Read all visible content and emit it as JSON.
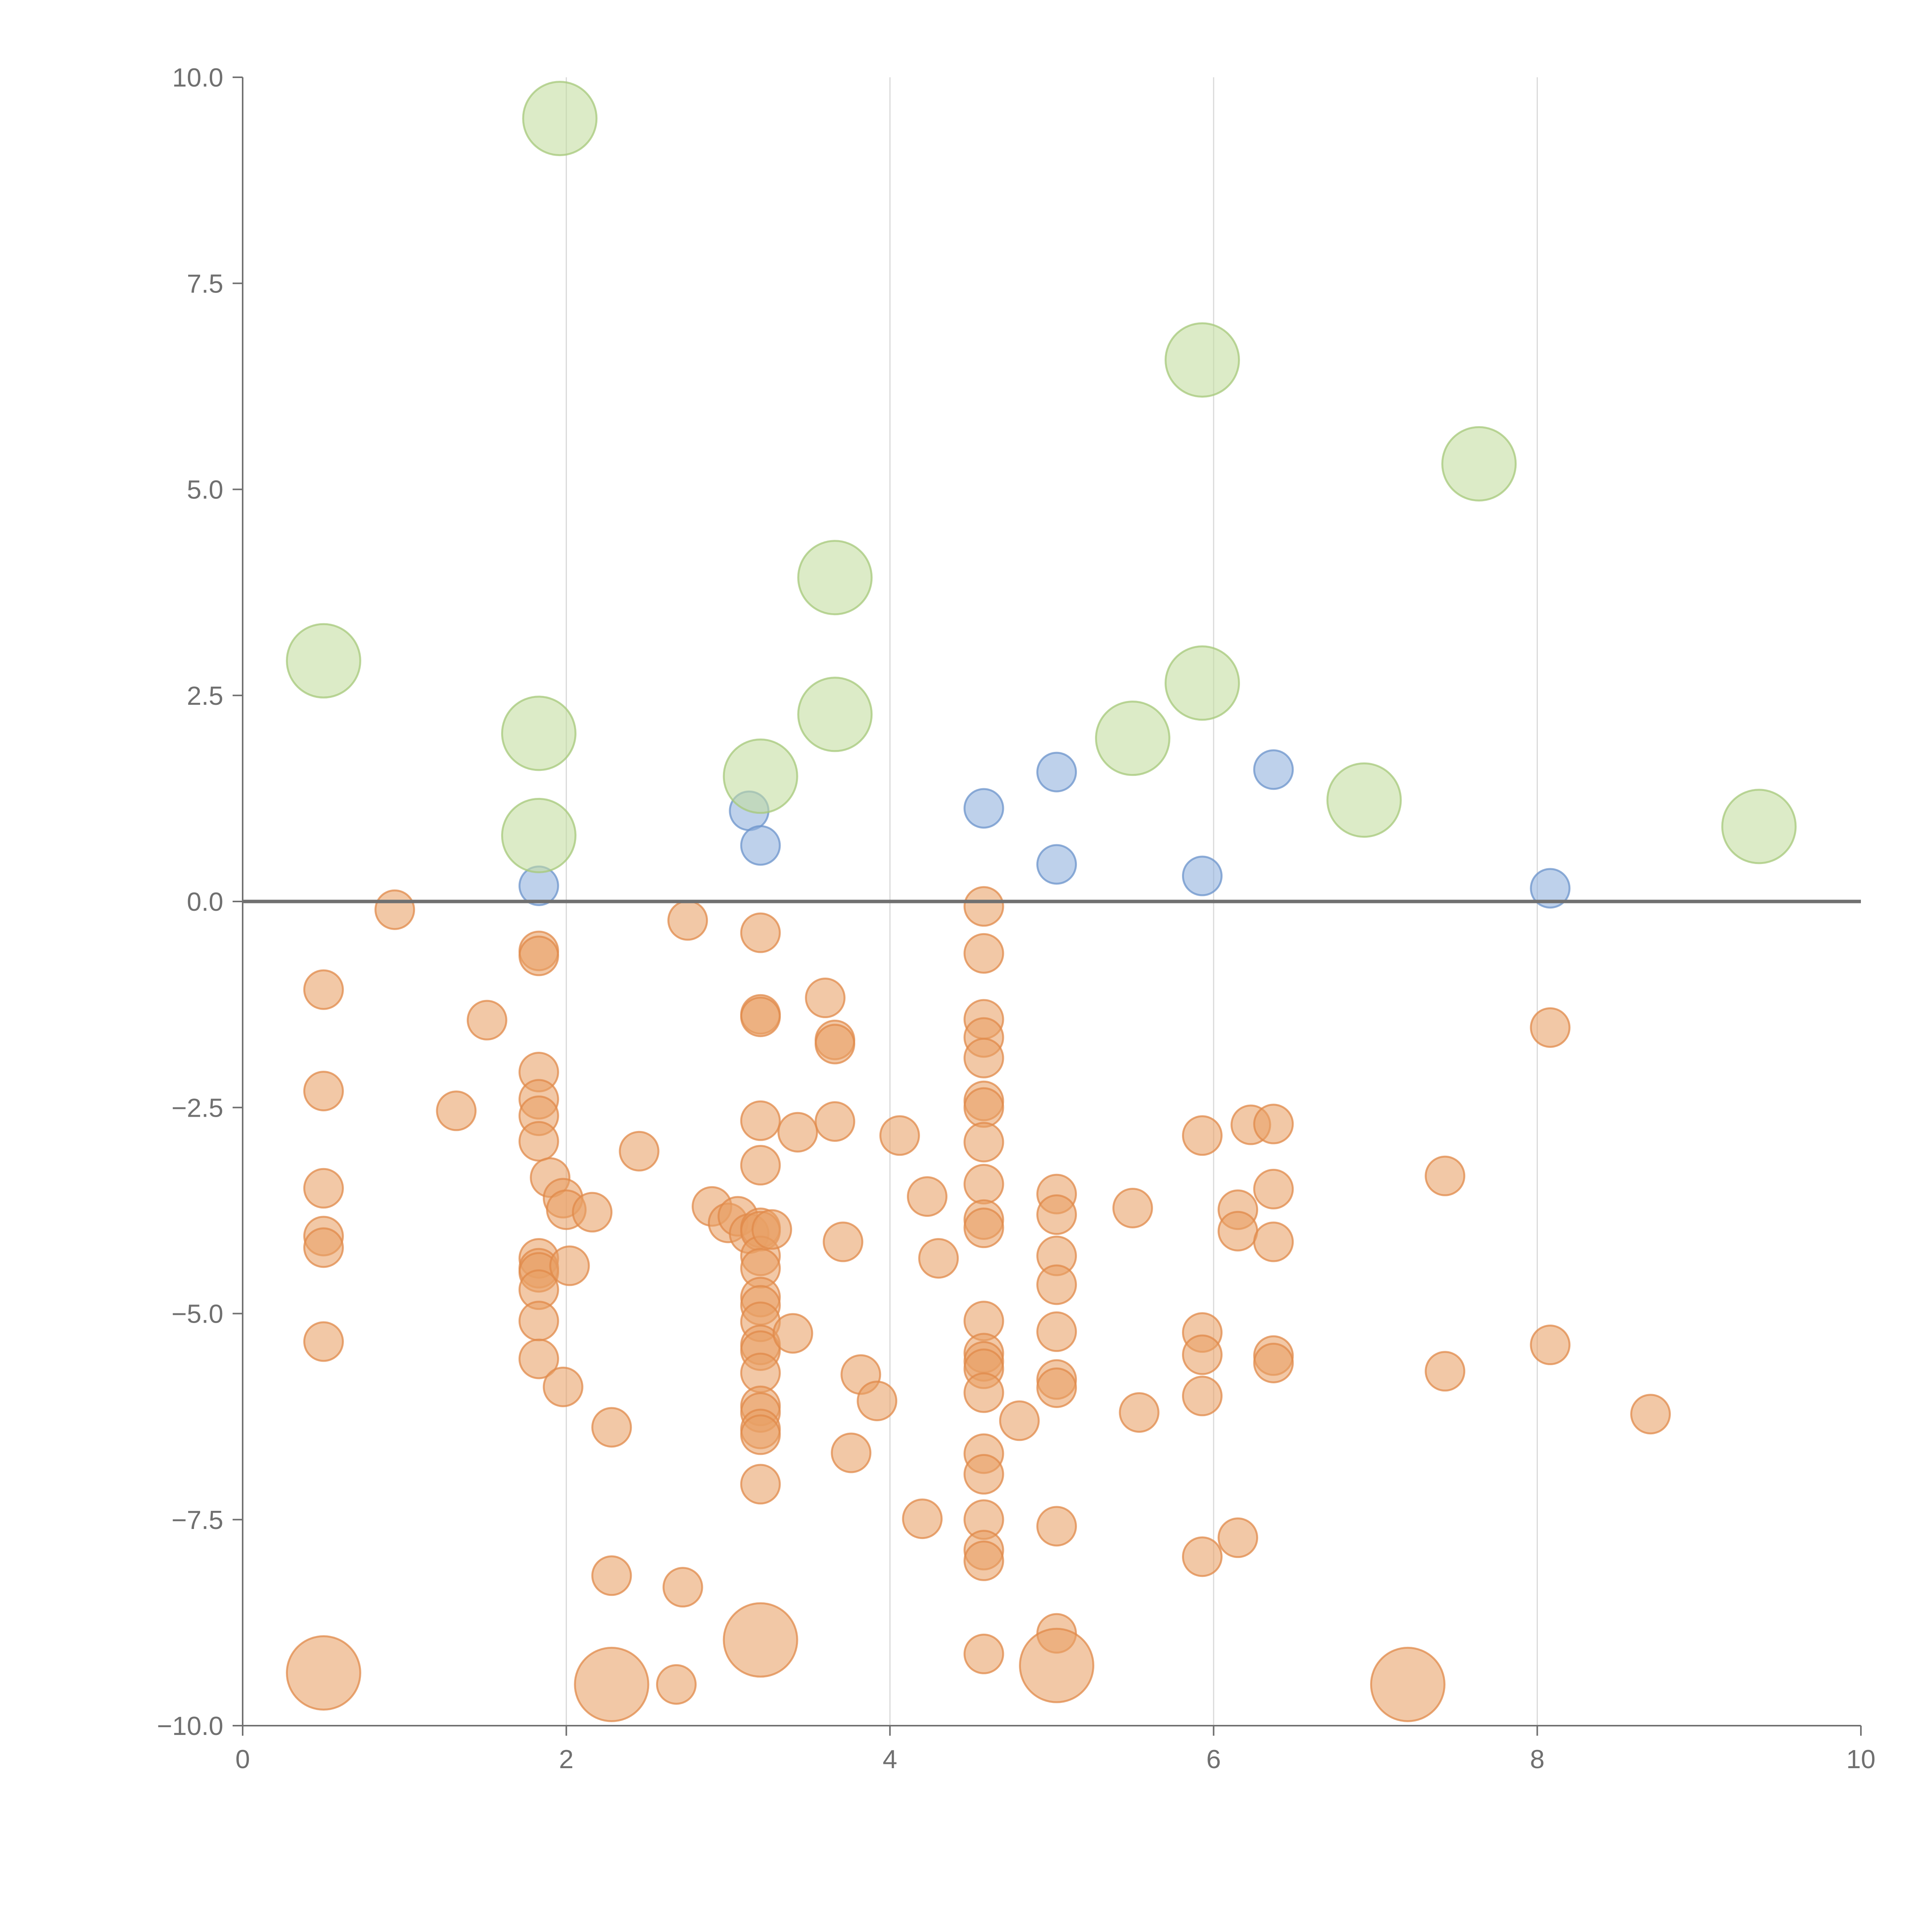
{
  "chart_data": {
    "type": "scatter",
    "title": "",
    "xlabel": "",
    "ylabel": "",
    "xlim": [
      0,
      10
    ],
    "ylim": [
      -10,
      10
    ],
    "xticks": [
      0,
      2,
      4,
      6,
      8,
      10
    ],
    "xtick_labels": [
      "0",
      "2",
      "4",
      "6",
      "8",
      "10"
    ],
    "yticks": [
      -10,
      -7.5,
      -5,
      -2.5,
      0,
      2.5,
      5,
      7.5,
      10
    ],
    "ytick_labels": [
      "−10.0",
      "−7.5",
      "−5.0",
      "−2.5",
      "0.0",
      "2.5",
      "5.0",
      "7.5",
      "10.0"
    ],
    "grid": "vertical lines at x ticks",
    "reference_line_y": 0,
    "series": [
      {
        "name": "orange small",
        "color": "#e8a066",
        "stroke": "#e08a4a",
        "size": "small",
        "points": [
          [
            0.94,
            -0.1
          ],
          [
            0.5,
            -1.07
          ],
          [
            0.5,
            -2.3
          ],
          [
            0.5,
            -3.48
          ],
          [
            0.5,
            -4.06
          ],
          [
            0.5,
            -4.2
          ],
          [
            0.5,
            -5.34
          ],
          [
            1.32,
            -2.54
          ],
          [
            1.51,
            -1.44
          ],
          [
            1.83,
            -0.6
          ],
          [
            1.83,
            -0.66
          ],
          [
            1.83,
            -2.07
          ],
          [
            1.83,
            -2.4
          ],
          [
            1.83,
            -2.6
          ],
          [
            1.83,
            -2.91
          ],
          [
            1.83,
            -4.33
          ],
          [
            1.83,
            -4.45
          ],
          [
            1.83,
            -4.5
          ],
          [
            1.83,
            -4.71
          ],
          [
            1.83,
            -5.09
          ],
          [
            1.83,
            -5.55
          ],
          [
            1.9,
            -3.35
          ],
          [
            1.98,
            -3.6
          ],
          [
            2.0,
            -3.74
          ],
          [
            1.98,
            -5.89
          ],
          [
            2.02,
            -4.42
          ],
          [
            2.16,
            -3.77
          ],
          [
            2.28,
            -6.38
          ],
          [
            2.28,
            -8.18
          ],
          [
            2.45,
            -3.03
          ],
          [
            2.68,
            -9.5
          ],
          [
            2.72,
            -8.32
          ],
          [
            2.75,
            -0.23
          ],
          [
            2.9,
            -3.7
          ],
          [
            3.0,
            -3.9
          ],
          [
            3.06,
            -3.82
          ],
          [
            3.13,
            -4.03
          ],
          [
            3.2,
            -0.38
          ],
          [
            3.2,
            -1.37
          ],
          [
            3.2,
            -1.4
          ],
          [
            3.2,
            -2.66
          ],
          [
            3.2,
            -3.2
          ],
          [
            3.2,
            -3.96
          ],
          [
            3.2,
            -4.0
          ],
          [
            3.2,
            -4.3
          ],
          [
            3.2,
            -4.45
          ],
          [
            3.2,
            -4.8
          ],
          [
            3.2,
            -4.9
          ],
          [
            3.2,
            -5.1
          ],
          [
            3.2,
            -5.38
          ],
          [
            3.2,
            -5.45
          ],
          [
            3.2,
            -5.72
          ],
          [
            3.2,
            -6.12
          ],
          [
            3.2,
            -6.2
          ],
          [
            3.2,
            -6.4
          ],
          [
            3.2,
            -6.47
          ],
          [
            3.2,
            -7.07
          ],
          [
            3.27,
            -3.98
          ],
          [
            3.4,
            -5.24
          ],
          [
            3.43,
            -2.8
          ],
          [
            3.6,
            -1.17
          ],
          [
            3.66,
            -1.68
          ],
          [
            3.66,
            -1.73
          ],
          [
            3.66,
            -2.67
          ],
          [
            3.71,
            -4.13
          ],
          [
            3.76,
            -6.69
          ],
          [
            3.82,
            -5.74
          ],
          [
            3.92,
            -6.06
          ],
          [
            4.06,
            -2.84
          ],
          [
            4.2,
            -7.49
          ],
          [
            4.23,
            -3.58
          ],
          [
            4.3,
            -4.33
          ],
          [
            4.58,
            -0.06
          ],
          [
            4.58,
            -0.63
          ],
          [
            4.58,
            -1.43
          ],
          [
            4.58,
            -1.65
          ],
          [
            4.58,
            -1.9
          ],
          [
            4.58,
            -2.42
          ],
          [
            4.58,
            -2.5
          ],
          [
            4.58,
            -2.92
          ],
          [
            4.58,
            -3.43
          ],
          [
            4.58,
            -3.86
          ],
          [
            4.58,
            -3.96
          ],
          [
            4.58,
            -5.09
          ],
          [
            4.58,
            -5.48
          ],
          [
            4.58,
            -5.58
          ],
          [
            4.58,
            -5.67
          ],
          [
            4.58,
            -5.96
          ],
          [
            4.58,
            -6.7
          ],
          [
            4.58,
            -6.95
          ],
          [
            4.58,
            -7.5
          ],
          [
            4.58,
            -7.87
          ],
          [
            4.58,
            -8.0
          ],
          [
            4.58,
            -9.13
          ],
          [
            4.8,
            -6.3
          ],
          [
            5.03,
            -3.55
          ],
          [
            5.03,
            -3.8
          ],
          [
            5.03,
            -4.3
          ],
          [
            5.03,
            -4.65
          ],
          [
            5.03,
            -5.22
          ],
          [
            5.03,
            -5.8
          ],
          [
            5.03,
            -5.9
          ],
          [
            5.03,
            -7.58
          ],
          [
            5.03,
            -8.88
          ],
          [
            5.5,
            -3.72
          ],
          [
            5.54,
            -6.2
          ],
          [
            5.93,
            -2.84
          ],
          [
            5.93,
            -5.23
          ],
          [
            5.93,
            -5.5
          ],
          [
            5.93,
            -6.0
          ],
          [
            5.93,
            -7.95
          ],
          [
            6.15,
            -3.74
          ],
          [
            6.15,
            -4.0
          ],
          [
            6.15,
            -7.72
          ],
          [
            6.23,
            -2.71
          ],
          [
            6.37,
            -2.7
          ],
          [
            6.37,
            -3.49
          ],
          [
            6.37,
            -4.13
          ],
          [
            6.37,
            -5.51
          ],
          [
            6.37,
            -5.6
          ],
          [
            7.43,
            -3.33
          ],
          [
            7.43,
            -5.7
          ],
          [
            8.08,
            -1.53
          ],
          [
            8.08,
            -5.38
          ],
          [
            8.7,
            -6.22
          ]
        ]
      },
      {
        "name": "orange large",
        "color": "#e8a066",
        "stroke": "#e08a4a",
        "size": "large",
        "points": [
          [
            0.5,
            -9.36
          ],
          [
            2.28,
            -9.5
          ],
          [
            3.2,
            -8.96
          ],
          [
            5.03,
            -9.27
          ],
          [
            7.2,
            -9.5
          ]
        ]
      },
      {
        "name": "blue",
        "color": "#8fb0dc",
        "stroke": "#6b93cb",
        "size": "small",
        "points": [
          [
            1.83,
            0.19
          ],
          [
            3.13,
            1.1
          ],
          [
            3.2,
            0.68
          ],
          [
            4.58,
            1.13
          ],
          [
            5.03,
            1.57
          ],
          [
            5.03,
            0.45
          ],
          [
            5.93,
            0.31
          ],
          [
            6.37,
            1.6
          ],
          [
            8.08,
            0.16
          ]
        ]
      },
      {
        "name": "green",
        "color": "#c3dc9e",
        "stroke": "#a5c879",
        "size": "large",
        "points": [
          [
            0.5,
            2.92
          ],
          [
            1.83,
            2.04
          ],
          [
            1.83,
            0.8
          ],
          [
            1.96,
            9.5
          ],
          [
            3.2,
            1.52
          ],
          [
            3.66,
            3.93
          ],
          [
            3.66,
            2.27
          ],
          [
            5.5,
            1.98
          ],
          [
            5.93,
            6.57
          ],
          [
            5.93,
            2.65
          ],
          [
            6.93,
            1.23
          ],
          [
            7.64,
            5.31
          ],
          [
            9.37,
            0.91
          ]
        ]
      }
    ]
  }
}
